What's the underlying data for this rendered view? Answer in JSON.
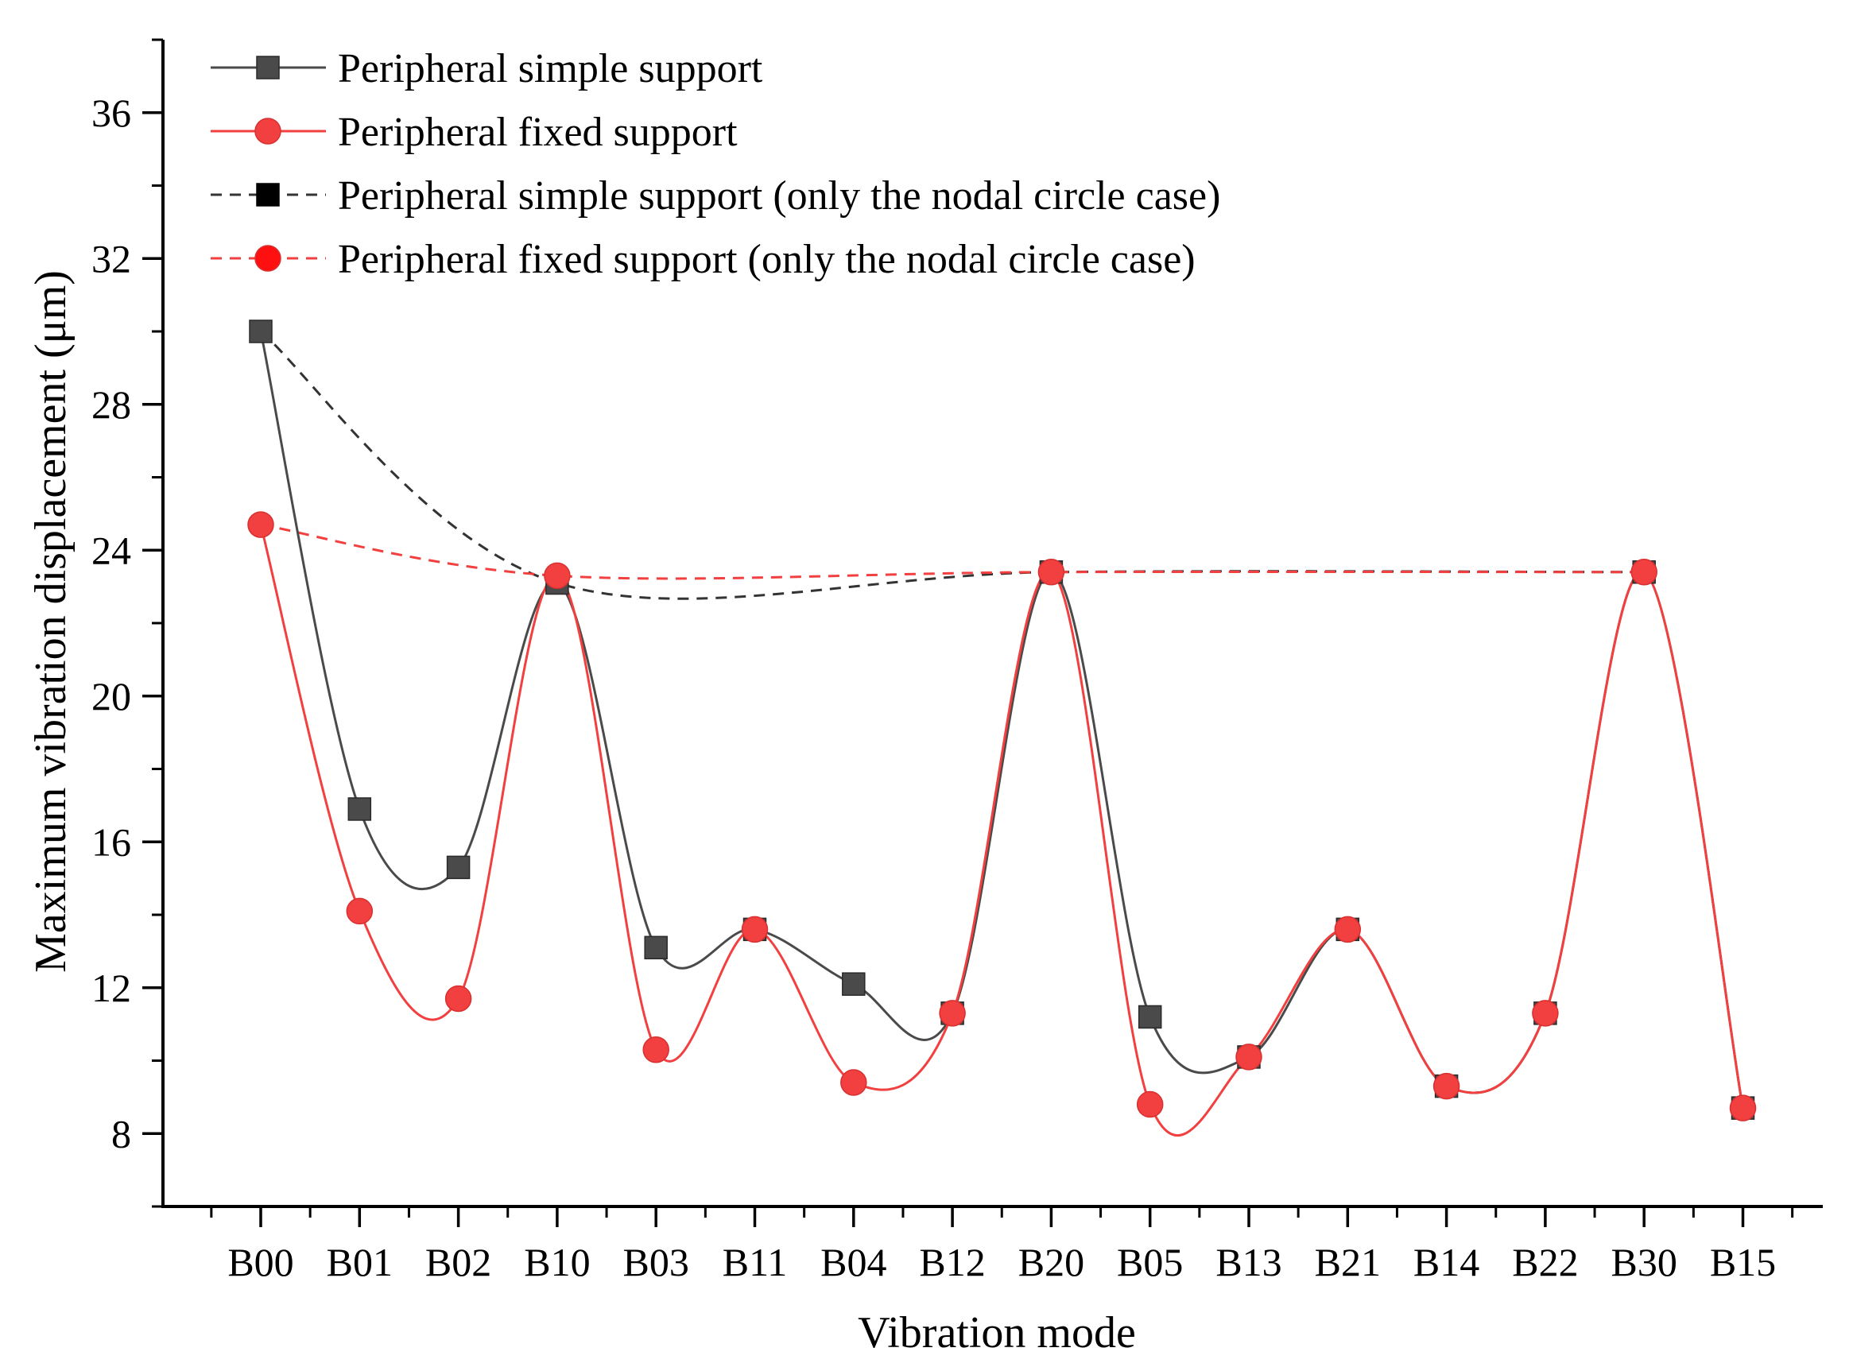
{
  "chart_data": {
    "type": "line",
    "title": "",
    "xlabel": "Vibration mode",
    "ylabel": "Maximum vibration displacement (μm)",
    "categories": [
      "B00",
      "B01",
      "B02",
      "B10",
      "B03",
      "B11",
      "B04",
      "B12",
      "B20",
      "B05",
      "B13",
      "B21",
      "B14",
      "B22",
      "B30",
      "B15"
    ],
    "ylim": [
      6,
      38
    ],
    "yticks": [
      8,
      12,
      16,
      20,
      24,
      28,
      32,
      36
    ],
    "ytick_labels": [
      "8",
      "12",
      "16",
      "20",
      "24",
      "28",
      "32",
      "36"
    ],
    "grid": false,
    "legend_position": "top-left",
    "series": [
      {
        "name": "Peripheral simple support",
        "color": "#4a4a4a",
        "line_style": "solid",
        "marker": "square",
        "values": [
          30.0,
          16.9,
          15.3,
          23.1,
          13.1,
          13.6,
          12.1,
          11.3,
          23.4,
          11.2,
          10.1,
          13.6,
          9.3,
          11.3,
          23.4,
          8.7
        ]
      },
      {
        "name": "Peripheral fixed support",
        "color": "#f23f3f",
        "line_style": "solid",
        "marker": "circle",
        "values": [
          24.7,
          14.1,
          11.7,
          23.3,
          10.3,
          13.6,
          9.4,
          11.3,
          23.4,
          8.8,
          10.1,
          13.6,
          9.3,
          11.3,
          23.4,
          8.7
        ]
      },
      {
        "name": "Peripheral simple support (only the nodal circle case)",
        "color": "#333333",
        "line_style": "dashed",
        "marker": "square",
        "points": [
          [
            "B00",
            30.0
          ],
          [
            "B10",
            23.1
          ],
          [
            "B20",
            23.4
          ],
          [
            "B30",
            23.4
          ]
        ]
      },
      {
        "name": "Peripheral fixed support (only the nodal circle case)",
        "color": "#f23f3f",
        "line_style": "dashed",
        "marker": "circle",
        "points": [
          [
            "B00",
            24.7
          ],
          [
            "B10",
            23.3
          ],
          [
            "B20",
            23.4
          ],
          [
            "B30",
            23.4
          ]
        ]
      }
    ]
  }
}
